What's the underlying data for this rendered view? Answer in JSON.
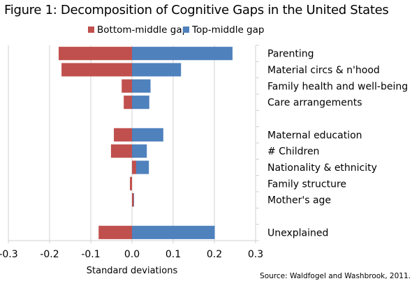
{
  "title": "Figure 1: Decomposition of Cognitive Gaps in the United States",
  "source": "Source: Waldfogel and Washbrook, 2011.",
  "chart_data": {
    "type": "bar",
    "orientation": "horizontal",
    "title": "Figure 1: Decomposition of Cognitive Gaps in the United States",
    "xlabel": "Standard deviations",
    "ylabel": "",
    "xlim": [
      -0.3,
      0.3
    ],
    "xticks": [
      "-0.3",
      "-0.2",
      "-0.1",
      "0.0",
      "0.1",
      "0.2",
      "0.3"
    ],
    "grid": "vertical",
    "legend_position": "top",
    "categories": [
      "Parenting",
      "Material circs & n'hood",
      "Family health and well-being",
      "Care arrangements",
      "",
      "Maternal education",
      "# Children",
      "Nationality & ethnicity",
      "Family structure",
      "Mother's age",
      "",
      "Unexplained"
    ],
    "series": [
      {
        "name": "Bottom-middle gap",
        "color": "#c0504d",
        "values": [
          -0.178,
          -0.171,
          -0.025,
          -0.02,
          null,
          -0.044,
          -0.051,
          0.01,
          -0.005,
          0.004,
          null,
          -0.081
        ]
      },
      {
        "name": "Top-middle gap",
        "color": "#4f81bd",
        "values": [
          0.244,
          0.119,
          0.045,
          0.042,
          null,
          0.076,
          0.036,
          0.041,
          -0.003,
          0.005,
          null,
          0.201
        ]
      }
    ]
  }
}
